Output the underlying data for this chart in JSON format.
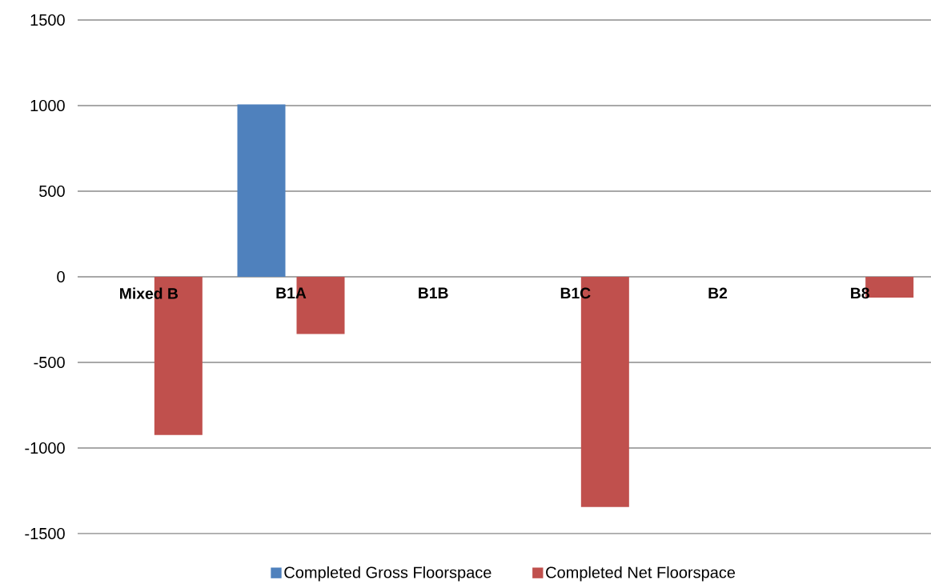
{
  "chart_data": {
    "type": "bar",
    "categories": [
      "Mixed B",
      "B1A",
      "B1B",
      "B1C",
      "B2",
      "B8"
    ],
    "series": [
      {
        "name": "Completed Gross Floorspace",
        "color": "#4f81bd",
        "values": [
          0,
          1007,
          0,
          0,
          0,
          0
        ]
      },
      {
        "name": "Completed Net Floorspace",
        "color": "#c0504d",
        "values": [
          -924,
          -334,
          0,
          -1345,
          0,
          -122
        ]
      }
    ],
    "ylim": [
      -1500,
      1500
    ],
    "yticks": [
      -1500,
      -1000,
      -500,
      0,
      500,
      1000,
      1500
    ],
    "grid": "y",
    "legend": "bottom"
  }
}
